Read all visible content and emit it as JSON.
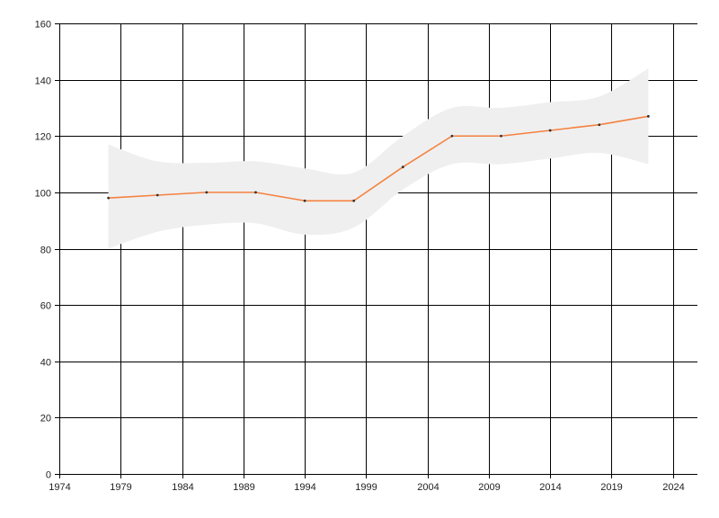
{
  "chart_data": {
    "type": "line",
    "title": "",
    "xlabel": "",
    "ylabel": "",
    "xlim": [
      1974,
      2026
    ],
    "ylim": [
      0,
      160
    ],
    "x_ticks": [
      1974,
      1979,
      1984,
      1989,
      1994,
      1999,
      2004,
      2009,
      2014,
      2019,
      2024
    ],
    "x_tick_labels": [
      "1974",
      "1979",
      "1984",
      "1989",
      "1994",
      "1999",
      "2004",
      "2009",
      "2014",
      "2019",
      "2024"
    ],
    "y_ticks": [
      0,
      20,
      40,
      60,
      80,
      100,
      120,
      140,
      160
    ],
    "y_tick_labels": [
      "0",
      "20",
      "40",
      "60",
      "80",
      "100",
      "120",
      "140",
      "160"
    ],
    "grid": true,
    "legend": "none",
    "x": [
      1978,
      1982,
      1986,
      1990,
      1994,
      1998,
      2002,
      2006,
      2010,
      2014,
      2018,
      2022
    ],
    "series": [
      {
        "values": [
          98,
          99,
          100,
          100,
          97,
          97,
          109,
          120,
          120,
          122,
          124,
          127
        ],
        "color": "#f5813f"
      }
    ],
    "band": {
      "upper": [
        117,
        111,
        110.5,
        111,
        108.5,
        107,
        120,
        130,
        130,
        132,
        134,
        144
      ],
      "lower": [
        80,
        86,
        88.5,
        89,
        85,
        87.5,
        101,
        110,
        110,
        112,
        114,
        110
      ],
      "color": "#efefef"
    }
  }
}
